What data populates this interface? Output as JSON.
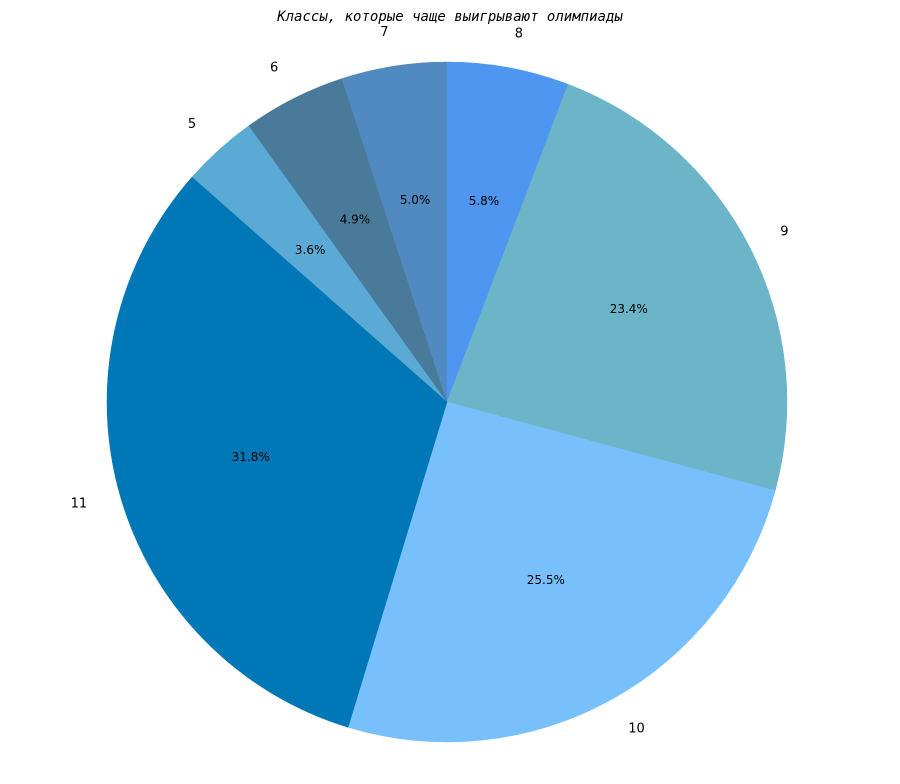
{
  "chart_data": {
    "type": "pie",
    "title": "Классы, которые чаще выигрывают олимпиады",
    "categories": [
      "5",
      "6",
      "7",
      "8",
      "9",
      "10",
      "11"
    ],
    "values": [
      3.6,
      4.9,
      5.0,
      5.8,
      23.4,
      25.5,
      31.8
    ],
    "value_labels": [
      "3.6%",
      "4.9%",
      "5.0%",
      "5.8%",
      "23.4%",
      "25.5%",
      "31.8%"
    ],
    "colors": [
      "#5aaad5",
      "#4a7a9a",
      "#508ac0",
      "#4f96f0",
      "#6cb4c8",
      "#78c0fc",
      "#0077b6"
    ]
  }
}
